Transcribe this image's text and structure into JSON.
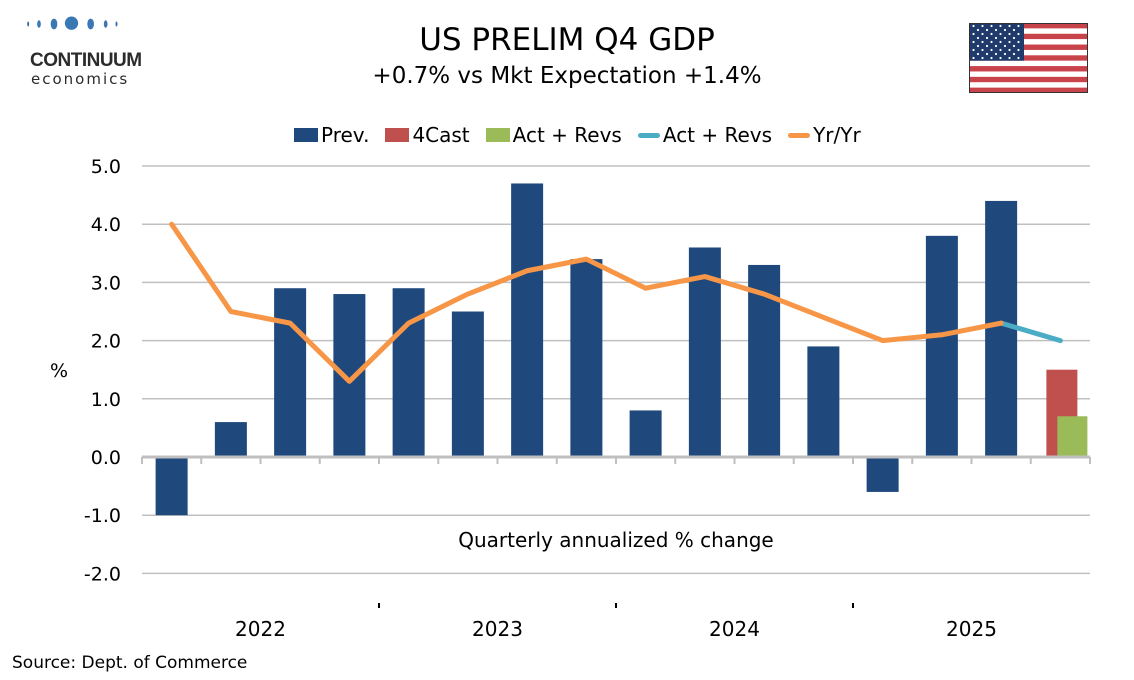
{
  "logo": {
    "name": "CONTINUUM",
    "sub": "economics",
    "color": "#3a78b4"
  },
  "header": {
    "title": "US PRELIM Q4 GDP",
    "subtitle": "+0.7% vs Mkt Expectation +1.4%"
  },
  "flag": {
    "icon": "us-flag-icon"
  },
  "footer": {
    "source": "Source: Dept. of Commerce"
  },
  "chart_data": {
    "type": "bar",
    "title": "US PRELIM Q4 GDP",
    "subtitle": "+0.7% vs Mkt Expectation +1.4%",
    "ylabel": "%",
    "annotation": "Quarterly annualized % change",
    "ylim": [
      -2.0,
      5.0
    ],
    "yticks": [
      "5.0",
      "4.0",
      "3.0",
      "2.0",
      "1.0",
      "0.0",
      "-1.0",
      "-2.0"
    ],
    "ytick_values": [
      5,
      4,
      3,
      2,
      1,
      0,
      -1,
      -2
    ],
    "grid": true,
    "legend_position": "top",
    "year_labels": [
      "2022",
      "2023",
      "2024",
      "2025"
    ],
    "categories": [
      "Q1 2022",
      "Q2 2022",
      "Q3 2022",
      "Q4 2022",
      "Q1 2023",
      "Q2 2023",
      "Q3 2023",
      "Q4 2023",
      "Q1 2024",
      "Q2 2024",
      "Q3 2024",
      "Q4 2024",
      "Q1 2025",
      "Q2 2025",
      "Q3 2025",
      "Q4 2025"
    ],
    "series": [
      {
        "name": "Prev.",
        "kind": "bar",
        "color": "#1f497d",
        "values": [
          -1.0,
          0.6,
          2.9,
          2.8,
          2.9,
          2.5,
          4.7,
          3.4,
          0.8,
          3.6,
          3.3,
          1.9,
          -0.6,
          3.8,
          4.4,
          null
        ]
      },
      {
        "name": "4Cast",
        "kind": "bar",
        "color": "#c0504d",
        "values": [
          null,
          null,
          null,
          null,
          null,
          null,
          null,
          null,
          null,
          null,
          null,
          null,
          null,
          null,
          null,
          1.5
        ]
      },
      {
        "name": "Act + Revs",
        "kind": "bar",
        "color": "#9bbb59",
        "values": [
          null,
          null,
          null,
          null,
          null,
          null,
          null,
          null,
          null,
          null,
          null,
          null,
          null,
          null,
          null,
          0.7
        ]
      },
      {
        "name": "Act + Revs",
        "kind": "line",
        "color": "#4bacc6",
        "values": [
          null,
          null,
          null,
          null,
          null,
          null,
          null,
          null,
          null,
          null,
          null,
          null,
          null,
          null,
          2.3,
          2.0
        ]
      },
      {
        "name": "Yr/Yr",
        "kind": "line",
        "color": "#f79646",
        "values": [
          4.0,
          2.5,
          2.3,
          1.3,
          2.3,
          2.8,
          3.2,
          3.4,
          2.9,
          3.1,
          2.8,
          2.4,
          2.0,
          2.1,
          2.3,
          null
        ]
      }
    ]
  }
}
